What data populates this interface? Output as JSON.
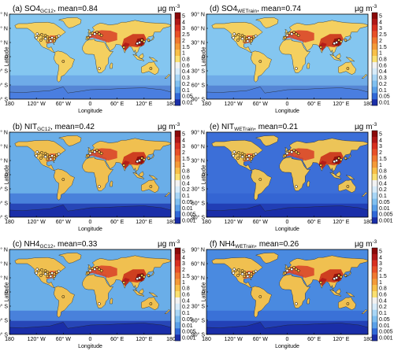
{
  "axes": {
    "xlabel": "Longitude",
    "ylabel": "Latitude",
    "xticks": [
      "180",
      "120° W",
      "60° W",
      "0",
      "60° E",
      "120° E",
      "180"
    ],
    "yticks": [
      "90° N",
      "60° N",
      "30° N",
      "0",
      "30° S",
      "60° S",
      "90° S"
    ]
  },
  "panels": [
    {
      "id": "a",
      "prefix": "(a) SO4",
      "sub": "GC12",
      "suffix": ", mean=0.84",
      "unit": "µg m",
      "unit_exp": "-3",
      "colorbar": [
        "5",
        "4",
        "3",
        "2.5",
        "2",
        "1.5",
        "1",
        "0.8",
        "0.6",
        "0.4",
        "0.3",
        "0.2",
        "0.1",
        "0.05",
        "0.01"
      ],
      "ocean_color": "#84c6f0",
      "land_color": "#f4d060"
    },
    {
      "id": "d",
      "prefix": "(d) SO4",
      "sub": "WETrain",
      "suffix": ", mean=0.74",
      "unit": "µg m",
      "unit_exp": "-3",
      "colorbar": [
        "5",
        "4",
        "3",
        "2.5",
        "2",
        "1.5",
        "1",
        "0.8",
        "0.6",
        "0.4",
        "0.3",
        "0.2",
        "0.1",
        "0.05",
        "0.01"
      ],
      "ocean_color": "#84c6f0",
      "land_color": "#f4d060"
    },
    {
      "id": "b",
      "prefix": "(b) NIT",
      "sub": "GC12",
      "suffix": ", mean=0.42",
      "unit": "µg m",
      "unit_exp": "-3",
      "colorbar": [
        "5",
        "4",
        "3",
        "2",
        "1.5",
        "1",
        "0.8",
        "0.6",
        "0.4",
        "0.2",
        "0.1",
        "0.05",
        "0.01",
        "0.005",
        "0.001"
      ],
      "ocean_color": "#6aaee8",
      "land_color": "#f0c050"
    },
    {
      "id": "e",
      "prefix": "(e) NIT",
      "sub": "WETrain",
      "suffix": ", mean=0.21",
      "unit": "µg m",
      "unit_exp": "-3",
      "colorbar": [
        "5",
        "4",
        "3",
        "2",
        "1.5",
        "1",
        "0.8",
        "0.6",
        "0.4",
        "0.2",
        "0.1",
        "0.05",
        "0.01",
        "0.005",
        "0.001"
      ],
      "ocean_color": "#3c6fd8",
      "land_color": "#ecc458"
    },
    {
      "id": "c",
      "prefix": "(c) NH4",
      "sub": "GC12",
      "suffix": ", mean=0.33",
      "unit": "µg m",
      "unit_exp": "-3",
      "colorbar": [
        "5",
        "4",
        "3",
        "2",
        "1.5",
        "1",
        "0.8",
        "0.6",
        "0.4",
        "0.2",
        "0.1",
        "0.05",
        "0.01",
        "0.005",
        "0.001"
      ],
      "ocean_color": "#6aaee8",
      "land_color": "#f0c050"
    },
    {
      "id": "f",
      "prefix": "(f) NH4",
      "sub": "WETrain",
      "suffix": ", mean=0.26",
      "unit": "µg m",
      "unit_exp": "-3",
      "colorbar": [
        "5",
        "4",
        "3",
        "2",
        "1.5",
        "1",
        "0.8",
        "0.6",
        "0.4",
        "0.2",
        "0.1",
        "0.05",
        "0.01",
        "0.005",
        "0.001"
      ],
      "ocean_color": "#4a8ae0",
      "land_color": "#f0c050"
    }
  ],
  "colorscale": [
    "#8a0a0a",
    "#b01818",
    "#d83020",
    "#e85028",
    "#f07830",
    "#f49a38",
    "#f8c048",
    "#fae070",
    "#f2f2f2",
    "#d8ecfa",
    "#a8d6f6",
    "#80c0f0",
    "#5aa0e8",
    "#3068d8",
    "#1a2ea8"
  ]
}
